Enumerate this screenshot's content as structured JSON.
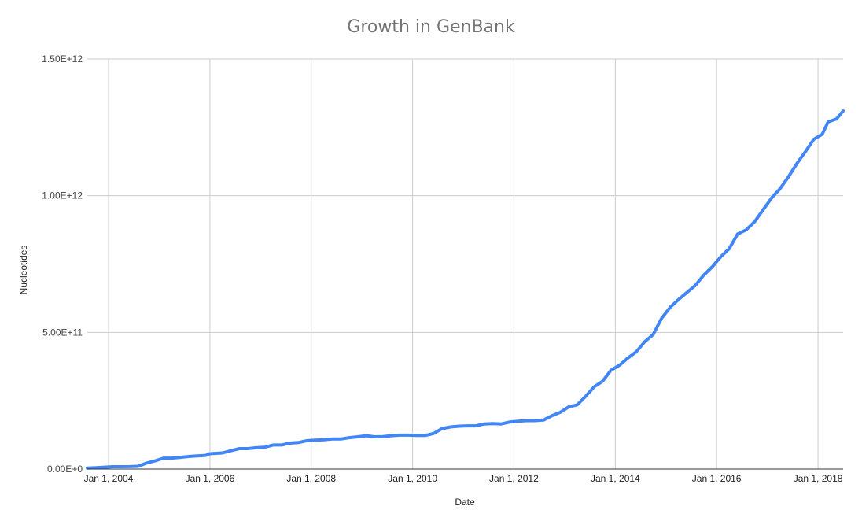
{
  "chart_data": {
    "type": "line",
    "title": "Growth in GenBank",
    "xlabel": "Date",
    "ylabel": "Nucleotides",
    "x_axis": {
      "type": "date",
      "range": [
        "2003-08-01",
        "2018-07-01"
      ],
      "ticks": [
        {
          "date": "2004-01-01",
          "label": "Jan 1, 2004"
        },
        {
          "date": "2006-01-01",
          "label": "Jan 1, 2006"
        },
        {
          "date": "2008-01-01",
          "label": "Jan 1, 2008"
        },
        {
          "date": "2010-01-01",
          "label": "Jan 1, 2010"
        },
        {
          "date": "2012-01-01",
          "label": "Jan 1, 2012"
        },
        {
          "date": "2014-01-01",
          "label": "Jan 1, 2014"
        },
        {
          "date": "2016-01-01",
          "label": "Jan 1, 2016"
        },
        {
          "date": "2018-01-01",
          "label": "Jan 1, 2018"
        }
      ]
    },
    "y_axis": {
      "range": [
        0,
        1500000000000
      ],
      "ticks": [
        {
          "value": 0,
          "label": "0.00E+0"
        },
        {
          "value": 500000000000,
          "label": "5.00E+11"
        },
        {
          "value": 1000000000000,
          "label": "1.00E+12"
        },
        {
          "value": 1500000000000,
          "label": "1.50E+12"
        }
      ]
    },
    "grid": true,
    "series": [
      {
        "color": "#4285f4",
        "points": [
          [
            "2003-08-01",
            3600000000.0
          ],
          [
            "2003-10-01",
            5000000000.0
          ],
          [
            "2003-12-01",
            7000000000.0
          ],
          [
            "2004-02-01",
            8500000000.0
          ],
          [
            "2004-04-01",
            8500000000.0
          ],
          [
            "2004-06-01",
            9000000000.0
          ],
          [
            "2004-08-01",
            10000000000.0
          ],
          [
            "2004-10-01",
            22000000000.0
          ],
          [
            "2004-12-01",
            30000000000.0
          ],
          [
            "2005-02-01",
            40000000000.0
          ],
          [
            "2005-04-01",
            40000000000.0
          ],
          [
            "2005-06-01",
            43000000000.0
          ],
          [
            "2005-08-01",
            46000000000.0
          ],
          [
            "2005-10-01",
            48000000000.0
          ],
          [
            "2005-12-01",
            50000000000.0
          ],
          [
            "2006-01-01",
            56000000000.0
          ],
          [
            "2006-04-01",
            59000000000.0
          ],
          [
            "2006-06-01",
            67000000000.0
          ],
          [
            "2006-08-01",
            75000000000.0
          ],
          [
            "2006-10-01",
            75000000000.0
          ],
          [
            "2006-12-01",
            78000000000.0
          ],
          [
            "2007-02-01",
            80000000000.0
          ],
          [
            "2007-04-01",
            88000000000.0
          ],
          [
            "2007-06-01",
            88000000000.0
          ],
          [
            "2007-08-01",
            95000000000.0
          ],
          [
            "2007-10-01",
            97000000000.0
          ],
          [
            "2007-12-01",
            104000000000.0
          ],
          [
            "2008-02-01",
            106000000000.0
          ],
          [
            "2008-04-01",
            107000000000.0
          ],
          [
            "2008-06-01",
            110000000000.0
          ],
          [
            "2008-08-01",
            110000000000.0
          ],
          [
            "2008-10-01",
            115000000000.0
          ],
          [
            "2008-12-01",
            118000000000.0
          ],
          [
            "2009-02-01",
            122000000000.0
          ],
          [
            "2009-04-01",
            118000000000.0
          ],
          [
            "2009-06-01",
            119000000000.0
          ],
          [
            "2009-08-01",
            122000000000.0
          ],
          [
            "2009-10-01",
            124000000000.0
          ],
          [
            "2009-12-01",
            124000000000.0
          ],
          [
            "2010-02-01",
            123000000000.0
          ],
          [
            "2010-04-01",
            123000000000.0
          ],
          [
            "2010-06-01",
            130000000000.0
          ],
          [
            "2010-08-01",
            148000000000.0
          ],
          [
            "2010-10-01",
            154000000000.0
          ],
          [
            "2010-12-01",
            157000000000.0
          ],
          [
            "2011-02-01",
            158000000000.0
          ],
          [
            "2011-04-01",
            158000000000.0
          ],
          [
            "2011-06-01",
            165000000000.0
          ],
          [
            "2011-08-01",
            166000000000.0
          ],
          [
            "2011-10-01",
            165000000000.0
          ],
          [
            "2011-12-01",
            172000000000.0
          ],
          [
            "2012-02-01",
            175000000000.0
          ],
          [
            "2012-04-01",
            177000000000.0
          ],
          [
            "2012-06-01",
            177000000000.0
          ],
          [
            "2012-08-01",
            179000000000.0
          ],
          [
            "2012-10-01",
            195000000000.0
          ],
          [
            "2012-12-01",
            208000000000.0
          ],
          [
            "2013-02-01",
            228000000000.0
          ],
          [
            "2013-04-01",
            235000000000.0
          ],
          [
            "2013-06-01",
            266000000000.0
          ],
          [
            "2013-08-01",
            301000000000.0
          ],
          [
            "2013-10-01",
            321000000000.0
          ],
          [
            "2013-12-01",
            362000000000.0
          ],
          [
            "2014-02-01",
            380000000000.0
          ],
          [
            "2014-04-01",
            406000000000.0
          ],
          [
            "2014-06-01",
            429000000000.0
          ],
          [
            "2014-08-01",
            466000000000.0
          ],
          [
            "2014-10-01",
            492000000000.0
          ],
          [
            "2014-12-01",
            552000000000.0
          ],
          [
            "2015-02-01",
            592000000000.0
          ],
          [
            "2015-04-01",
            620000000000.0
          ],
          [
            "2015-06-01",
            646000000000.0
          ],
          [
            "2015-08-01",
            672000000000.0
          ],
          [
            "2015-10-01",
            710000000000.0
          ],
          [
            "2015-12-01",
            740000000000.0
          ],
          [
            "2016-02-01",
            777000000000.0
          ],
          [
            "2016-04-01",
            806000000000.0
          ],
          [
            "2016-06-01",
            860000000000.0
          ],
          [
            "2016-08-01",
            875000000000.0
          ],
          [
            "2016-10-01",
            905000000000.0
          ],
          [
            "2016-12-01",
            948000000000.0
          ],
          [
            "2017-02-01",
            992000000000.0
          ],
          [
            "2017-04-01",
            1025000000000.0
          ],
          [
            "2017-06-01",
            1068000000000.0
          ],
          [
            "2017-08-01",
            1117000000000.0
          ],
          [
            "2017-10-01",
            1160000000000.0
          ],
          [
            "2017-12-01",
            1206000000000.0
          ],
          [
            "2018-02-01",
            1225000000000.0
          ],
          [
            "2018-03-15",
            1270000000000.0
          ],
          [
            "2018-05-15",
            1281000000000.0
          ],
          [
            "2018-07-01",
            1310000000000.0
          ]
        ]
      }
    ]
  }
}
